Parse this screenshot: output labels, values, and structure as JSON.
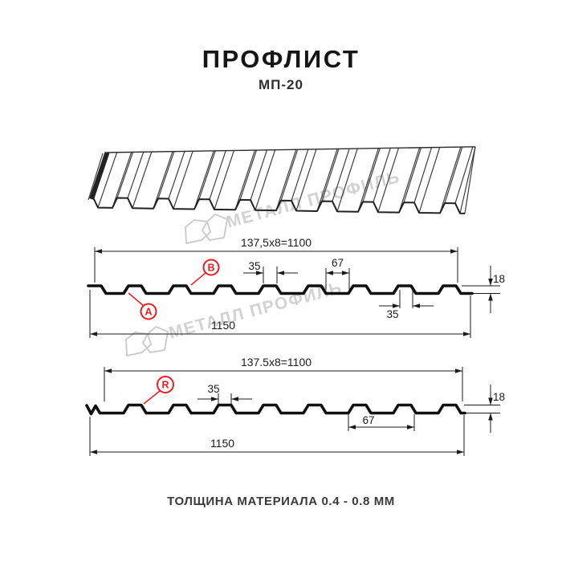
{
  "header": {
    "title": "ПРОФЛИСТ",
    "subtitle": "МП-20"
  },
  "watermark": {
    "brand_text": "МЕТАЛЛ ПРОФИЛЬ"
  },
  "footer": {
    "material_note": "ТОЛЩИНА МАТЕРИАЛА 0.4 - 0.8 ММ"
  },
  "colors": {
    "accent_red": "#ee1b24",
    "line": "#1b1b1b",
    "watermark_gray": "#d2d2d2"
  },
  "drawing_top": {
    "width_total_label": "137,5x8=1100",
    "rib_top_label": "35",
    "valley_label": "67",
    "height_label": "18",
    "rib_bottom_label": "35",
    "overall_label": "1150",
    "point_a": "A",
    "point_b": "B"
  },
  "drawing_bottom": {
    "width_total_label": "137.5x8=1100",
    "rib_top_label": "35",
    "valley_label": "67",
    "height_label": "18",
    "overall_label": "1150",
    "point_r": "R"
  }
}
